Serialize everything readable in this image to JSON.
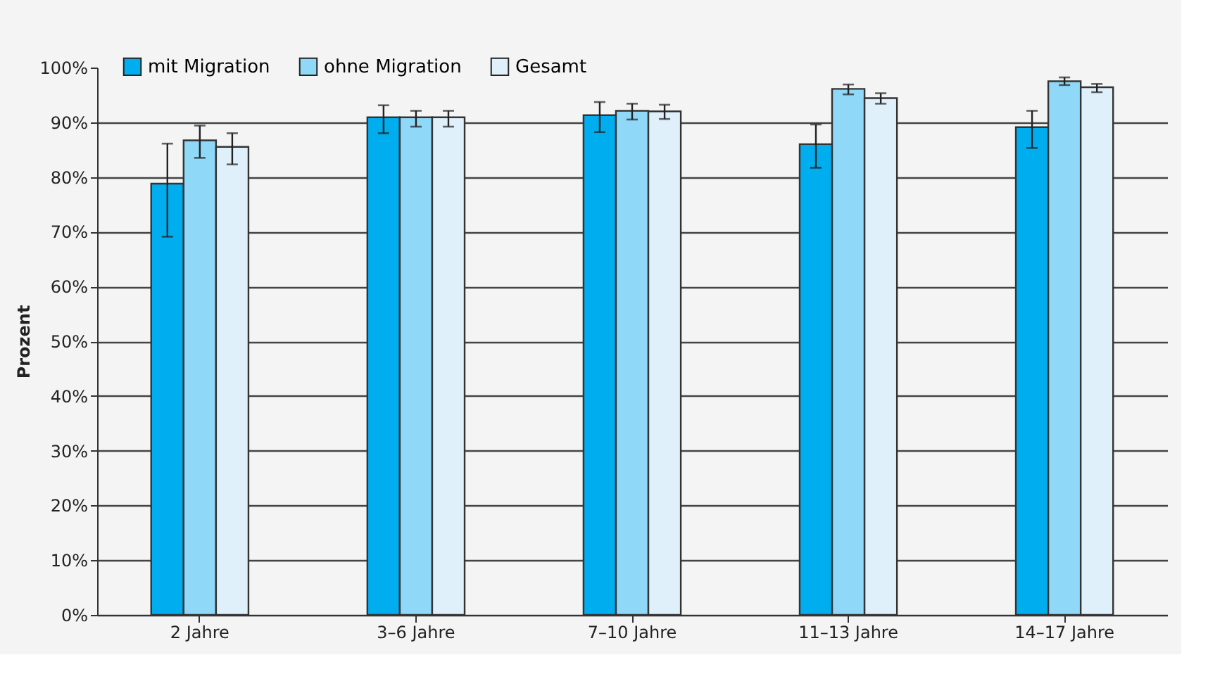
{
  "chart_data": {
    "type": "bar",
    "ylabel": "Prozent",
    "categories": [
      "2 Jahre",
      "3–6 Jahre",
      "7–10 Jahre",
      "11–13 Jahre",
      "14–17 Jahre"
    ],
    "series": [
      {
        "name": "mit Migration",
        "color": "#00aeef",
        "values": [
          78.8,
          90.9,
          91.3,
          86.0,
          89.1
        ],
        "errors": [
          [
            69.1,
            86.1
          ],
          [
            88.0,
            93.1
          ],
          [
            88.2,
            93.7
          ],
          [
            81.7,
            89.6
          ],
          [
            85.3,
            92.1
          ]
        ]
      },
      {
        "name": "ohne Migration",
        "color": "#8fd8f8",
        "values": [
          86.7,
          90.9,
          92.1,
          96.1,
          97.5
        ],
        "errors": [
          [
            83.5,
            89.4
          ],
          [
            89.2,
            92.1
          ],
          [
            90.5,
            93.4
          ],
          [
            95.1,
            96.9
          ],
          [
            96.8,
            98.2
          ]
        ]
      },
      {
        "name": "Gesamt",
        "color": "#dff0fb",
        "values": [
          85.5,
          90.9,
          92.0,
          94.4,
          96.4
        ],
        "errors": [
          [
            82.3,
            88.0
          ],
          [
            89.2,
            92.1
          ],
          [
            90.6,
            93.2
          ],
          [
            93.4,
            95.3
          ],
          [
            95.5,
            97.0
          ]
        ]
      }
    ],
    "ylim": [
      0,
      100
    ],
    "yticks": [
      {
        "value": 0,
        "label": "0%"
      },
      {
        "value": 10,
        "label": "10%"
      },
      {
        "value": 20,
        "label": "20%"
      },
      {
        "value": 30,
        "label": "30%"
      },
      {
        "value": 40,
        "label": "40%"
      },
      {
        "value": 50,
        "label": "50%"
      },
      {
        "value": 60,
        "label": "60%"
      },
      {
        "value": 70,
        "label": "70%"
      },
      {
        "value": 80,
        "label": "80%"
      },
      {
        "value": 90,
        "label": "90%"
      },
      {
        "value": 100,
        "label": "100%"
      }
    ],
    "grid": "y",
    "legend": "top left"
  }
}
